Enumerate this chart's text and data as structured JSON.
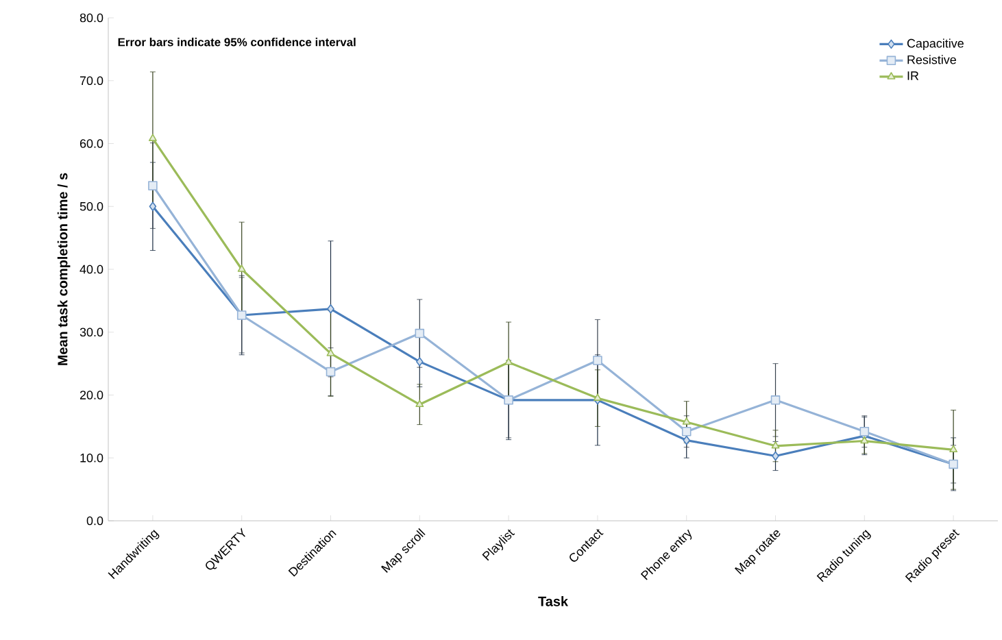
{
  "chart_data": {
    "type": "line",
    "xlabel": "Task",
    "ylabel": "Mean task completion time / s",
    "annotations": [
      "Error bars indicate 95% confidence interval"
    ],
    "categories": [
      "Handwriting",
      "QWERTY",
      "Destination",
      "Map scroll",
      "Playlist",
      "Contact",
      "Phone entry",
      "Map rotate",
      "Radio tuning",
      "Radio preset"
    ],
    "ylim": [
      0,
      80
    ],
    "yticks": [
      {
        "value": 0,
        "label": "0.0"
      },
      {
        "value": 10,
        "label": "10.0"
      },
      {
        "value": 20,
        "label": "20.0"
      },
      {
        "value": 30,
        "label": "30.0"
      },
      {
        "value": 40,
        "label": "40.0"
      },
      {
        "value": 50,
        "label": "50.0"
      },
      {
        "value": 60,
        "label": "60.0"
      },
      {
        "value": 70,
        "label": "70.0"
      },
      {
        "value": 80,
        "label": "80.0"
      }
    ],
    "legend": "top right",
    "line_style": "solid",
    "series": [
      {
        "name": "Capacitive",
        "color": "#4a7ebb",
        "marker": "diamond",
        "values": [
          50.0,
          32.7,
          33.7,
          25.3,
          19.2,
          19.2,
          12.8,
          10.3,
          13.5,
          9.0
        ],
        "errors": [
          7.0,
          6.3,
          10.8,
          4.0,
          6.3,
          7.2,
          2.8,
          2.3,
          3.0,
          4.2
        ]
      },
      {
        "name": "Resistive",
        "color": "#95b3d7",
        "marker": "square",
        "values": [
          53.3,
          32.7,
          23.7,
          29.8,
          19.2,
          25.5,
          14.2,
          19.2,
          14.2,
          9.0
        ],
        "errors": [
          6.8,
          6.0,
          3.8,
          5.4,
          6.0,
          6.5,
          2.5,
          5.8,
          2.5,
          3.0
        ]
      },
      {
        "name": "IR",
        "color": "#9bbb59",
        "marker": "triangle",
        "values": [
          60.8,
          40.0,
          26.6,
          18.5,
          25.2,
          19.5,
          15.7,
          11.9,
          12.7,
          11.3
        ],
        "errors": [
          10.6,
          7.5,
          6.8,
          3.2,
          6.4,
          4.5,
          3.3,
          2.5,
          2.0,
          6.3
        ]
      }
    ]
  }
}
